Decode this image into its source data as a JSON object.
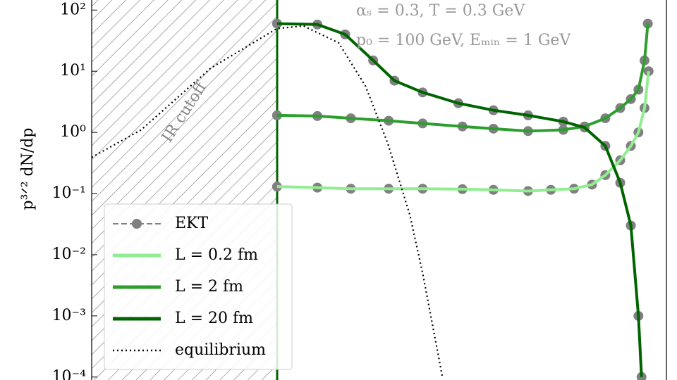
{
  "chart_data": {
    "type": "line",
    "y_label": "p³ᐟ² dN/dp",
    "annotations": [
      "αₛ = 0.3, T = 0.3 GeV",
      "p₀ = 100 GeV, Eₘᵢₙ = 1 GeV",
      "IR cutoff"
    ],
    "xlog": true,
    "ylog": true,
    "xlim": [
      0.1,
      126
    ],
    "ylim": [
      8.95e-05,
      146
    ],
    "yticks": [
      {
        "value": 100,
        "label": "10²"
      },
      {
        "value": 10,
        "label": "10¹"
      },
      {
        "value": 1,
        "label": "10⁰"
      },
      {
        "value": 0.1,
        "label": "10⁻¹"
      },
      {
        "value": 0.01,
        "label": "10⁻²"
      },
      {
        "value": 0.001,
        "label": "10⁻³"
      },
      {
        "value": 0.0001,
        "label": "10⁻⁴"
      }
    ],
    "series": [
      {
        "name": "EKT",
        "color": "#808080",
        "marker": "circle",
        "dashed": true,
        "x": [
          1,
          1.65,
          2.5,
          4,
          6.1,
          10,
          14.7,
          22.6,
          30,
          40,
          50,
          59,
          71,
          81,
          89,
          96,
          101,
          null,
          1,
          1.65,
          2.5,
          4,
          6.1,
          10,
          14.7,
          22.6,
          35,
          45.6,
          59,
          71,
          81,
          89,
          96,
          100,
          null,
          1,
          1.65,
          2.33,
          3.3,
          4.3,
          6.1,
          9.5,
          14.7,
          22.6,
          35,
          45.6,
          59,
          71,
          81,
          89,
          92.5
        ],
        "values": [
          0.13,
          0.125,
          0.12,
          0.12,
          0.12,
          0.118,
          0.115,
          0.11,
          0.115,
          0.12,
          0.14,
          0.2,
          0.35,
          0.6,
          1.0,
          2.5,
          10,
          null,
          1.9,
          1.85,
          1.7,
          1.55,
          1.4,
          1.25,
          1.15,
          1.05,
          1.1,
          1.25,
          1.7,
          2.5,
          3.5,
          5,
          15,
          60,
          null,
          60,
          58,
          40,
          15,
          7,
          4.5,
          3,
          2.3,
          1.9,
          1.5,
          1.2,
          0.6,
          0.15,
          0.03,
          0.001,
          0.0001
        ]
      },
      {
        "name": "L = 0.2 fm",
        "color": "#90ee90",
        "x": [
          1,
          1.65,
          2.5,
          4,
          6.1,
          10,
          14.7,
          22.6,
          30,
          40,
          50,
          59,
          71,
          81,
          89,
          96,
          101
        ],
        "values": [
          0.13,
          0.125,
          0.12,
          0.12,
          0.12,
          0.118,
          0.115,
          0.11,
          0.115,
          0.12,
          0.14,
          0.2,
          0.35,
          0.6,
          1.0,
          2.5,
          10
        ]
      },
      {
        "name": "L = 2 fm",
        "color": "#2e9e2e",
        "x": [
          1,
          1.65,
          2.5,
          4,
          6.1,
          10,
          14.7,
          22.6,
          35,
          45.6,
          59,
          71,
          81,
          89,
          96,
          100
        ],
        "values": [
          1.9,
          1.85,
          1.7,
          1.55,
          1.4,
          1.25,
          1.15,
          1.05,
          1.1,
          1.25,
          1.7,
          2.5,
          3.5,
          5,
          15,
          60
        ]
      },
      {
        "name": "L = 20 fm",
        "color": "#006400",
        "x": [
          1,
          1.65,
          2.33,
          3.3,
          4.3,
          6.1,
          9.5,
          14.7,
          22.6,
          35,
          45.6,
          59,
          71,
          81,
          89,
          92.5
        ],
        "values": [
          60,
          58,
          40,
          15,
          7,
          4.5,
          3,
          2.3,
          1.9,
          1.5,
          1.2,
          0.6,
          0.15,
          0.03,
          0.001,
          0.0001
        ]
      },
      {
        "name": "equilibrium",
        "color": "#000000",
        "dotted": true,
        "x": [
          0.1,
          0.185,
          0.44,
          1,
          1.39,
          2.15,
          3.0,
          3.95,
          5.2,
          6.1,
          7.8
        ],
        "values": [
          0.39,
          1.1,
          11.3,
          50,
          55,
          29,
          5.7,
          0.67,
          0.045,
          0.005,
          0.0001
        ]
      }
    ]
  }
}
